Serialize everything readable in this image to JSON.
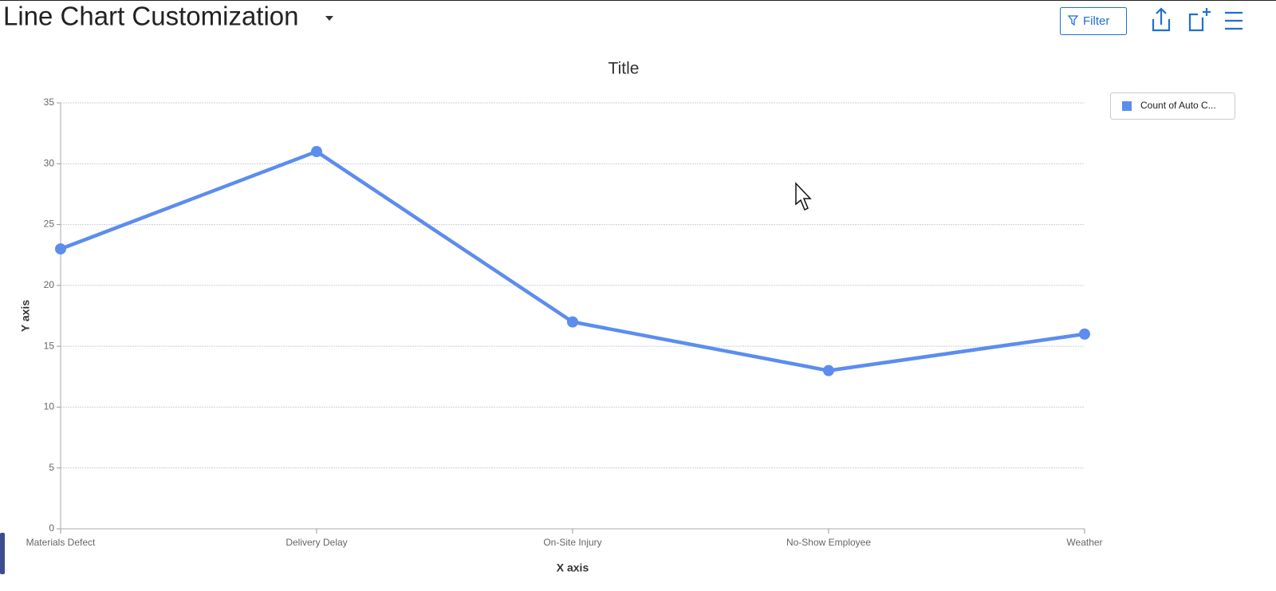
{
  "header": {
    "title": "Line Chart Customization",
    "filter": "Filter"
  },
  "chart_data": {
    "type": "line",
    "title": "Title",
    "x_label": "X axis",
    "y_label": "Y axis",
    "categories": [
      "Materials Defect",
      "Delivery Delay",
      "On-Site Injury",
      "No-Show Employee",
      "Weather"
    ],
    "series": [
      {
        "name": "Count of Auto C...",
        "color": "#5b8def",
        "values": [
          23,
          31,
          17,
          13,
          16
        ]
      }
    ],
    "ylim": [
      0,
      35
    ],
    "yticks": [
      0,
      5,
      10,
      15,
      20,
      25,
      30,
      35
    ],
    "grid": true,
    "legend": "top-right"
  }
}
